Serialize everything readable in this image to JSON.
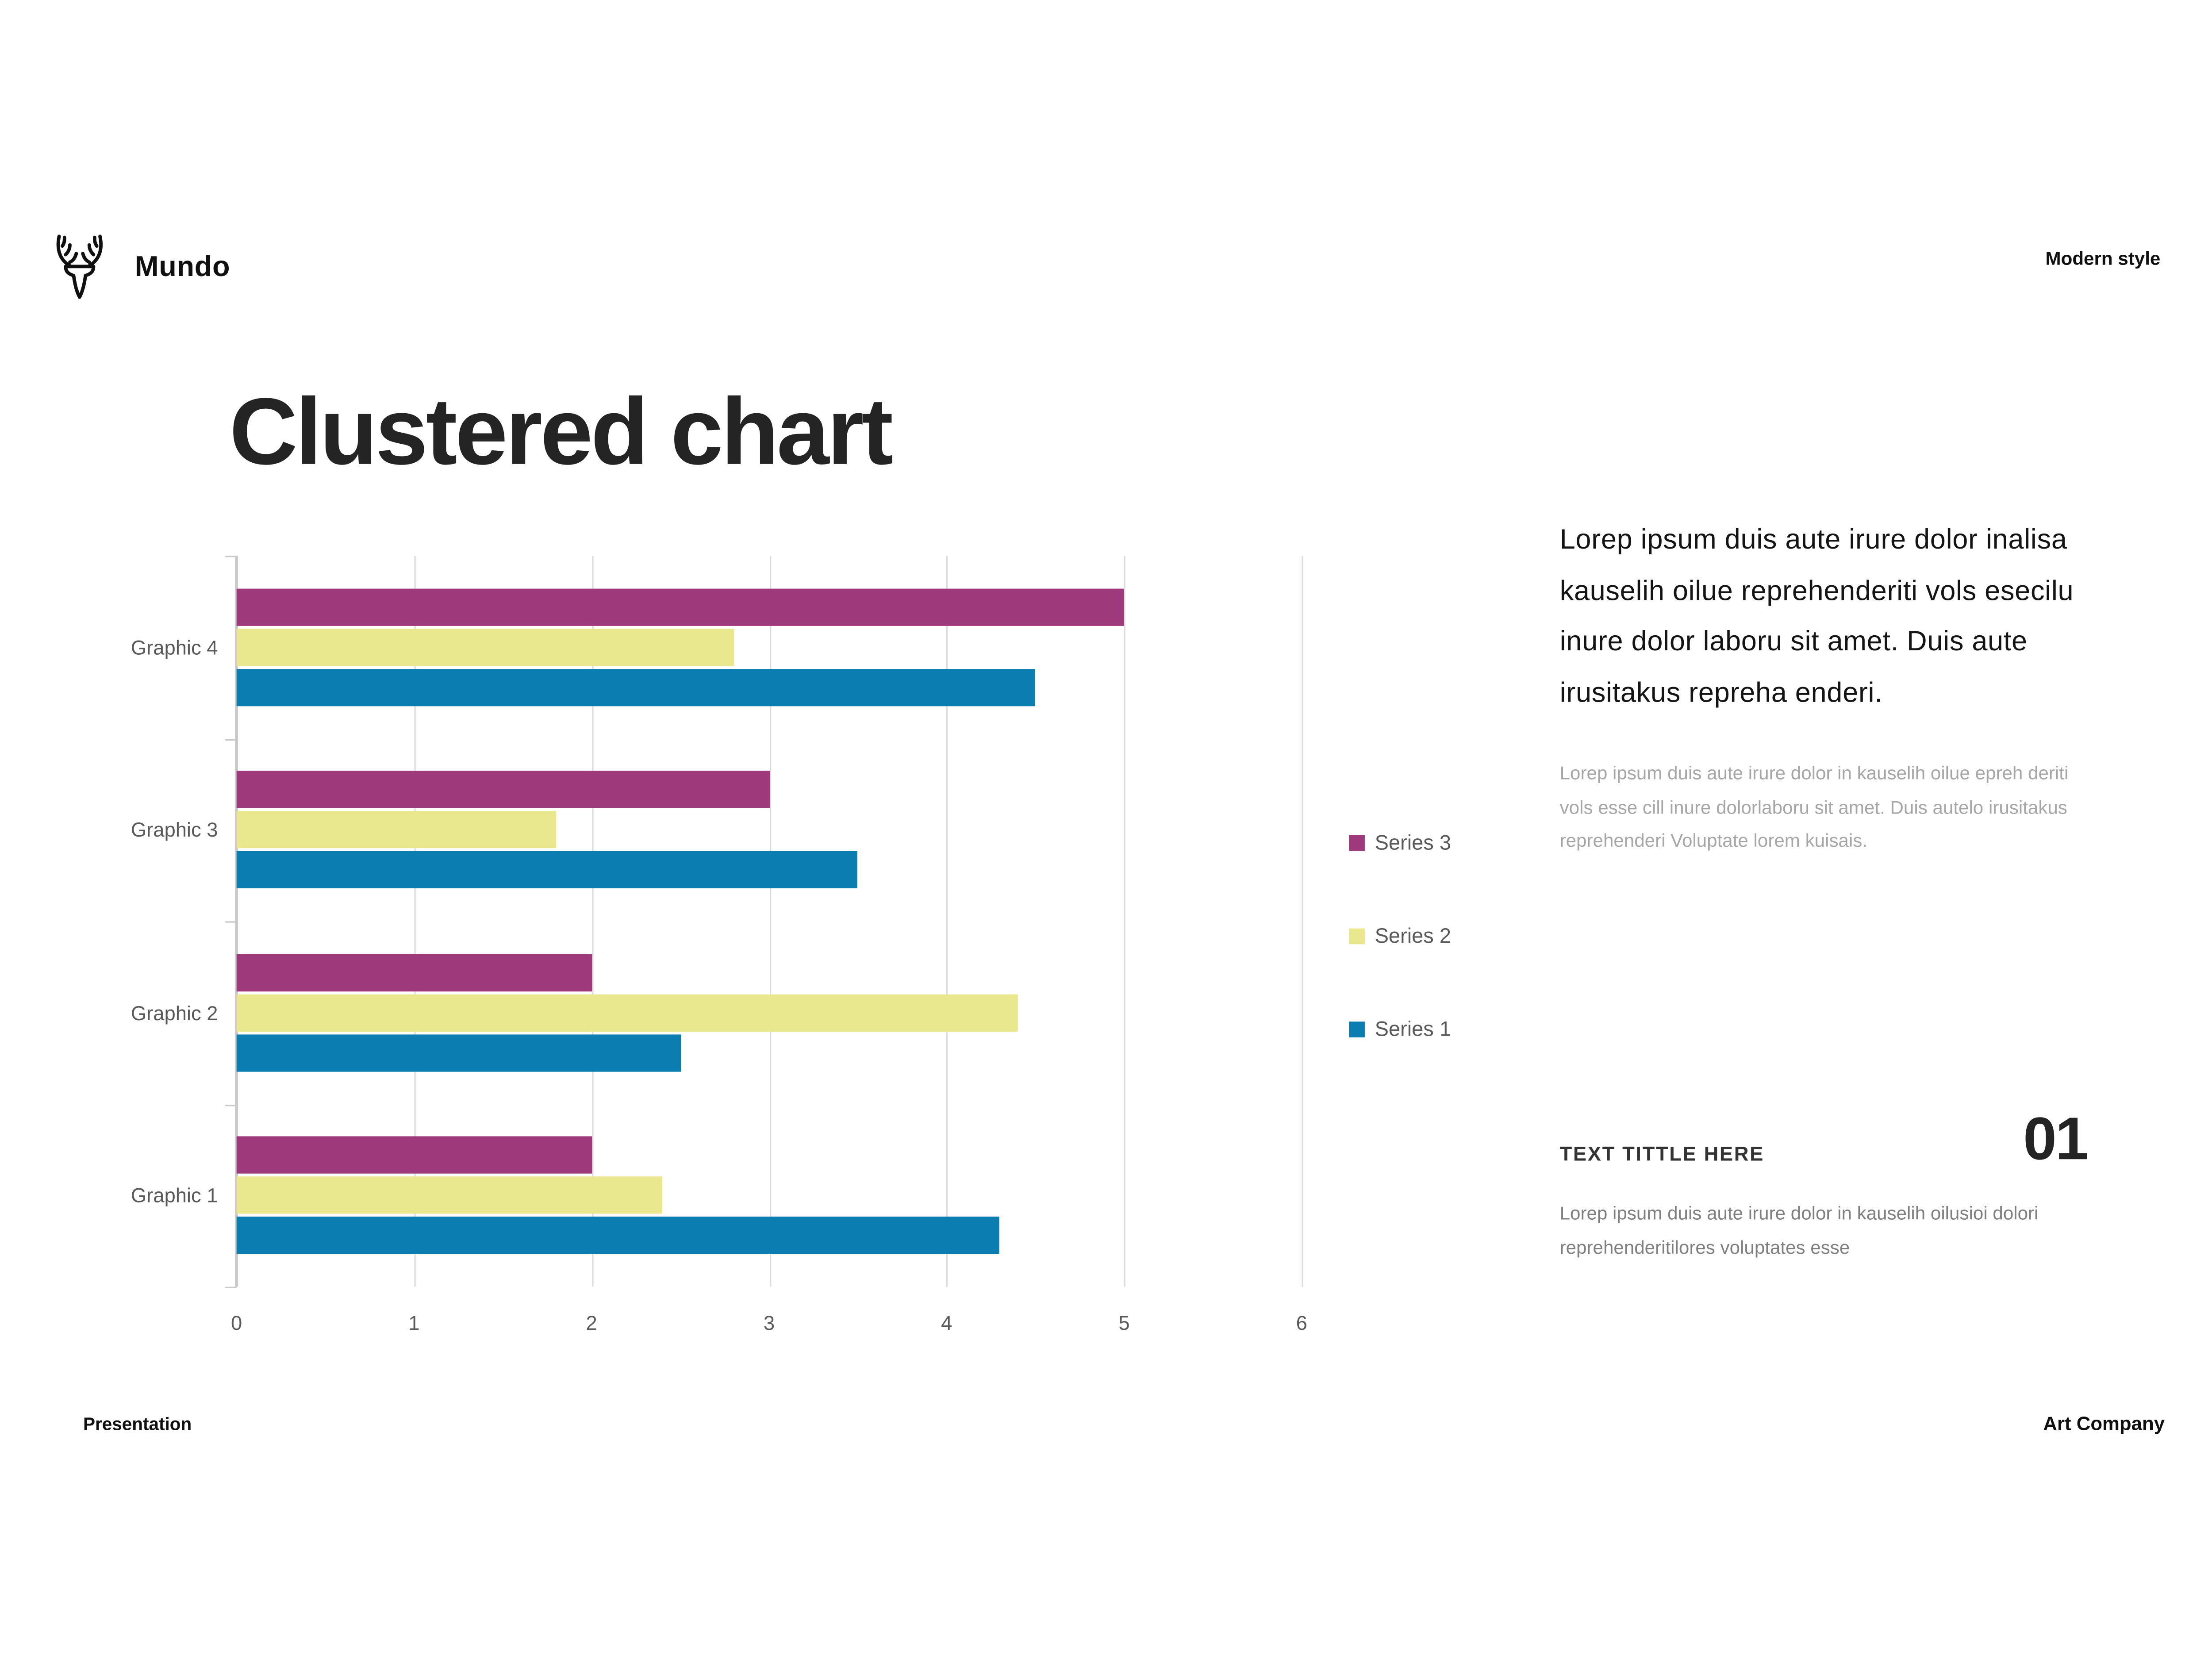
{
  "header": {
    "brand": "Mundo",
    "style_label": "Modern style"
  },
  "title": "Clustered chart",
  "chart_data": {
    "type": "bar",
    "orientation": "horizontal",
    "title": "Clustered chart",
    "categories": [
      "Graphic 4",
      "Graphic 3",
      "Graphic 2",
      "Graphic 1"
    ],
    "series": [
      {
        "name": "Series 3",
        "color": "#9e3a7c",
        "values": [
          5.0,
          3.0,
          2.0,
          2.0
        ]
      },
      {
        "name": "Series 2",
        "color": "#eae88f",
        "values": [
          2.8,
          1.8,
          4.4,
          2.4
        ]
      },
      {
        "name": "Series 1",
        "color": "#0b7db0",
        "values": [
          4.5,
          3.5,
          2.5,
          4.3
        ]
      }
    ],
    "x_ticks": [
      "0",
      "1",
      "2",
      "3",
      "4",
      "5",
      "6"
    ],
    "xlim": [
      0,
      6
    ],
    "grid": true,
    "grid_color": "#dcdcdc",
    "axis_color": "#c9c9c9",
    "legend_position": "right"
  },
  "right_panel": {
    "lead_paragraph": "Lorep  ipsum duis aute irure dolor inalisa kauselih oilue reprehenderiti vols esecilu inure dolor laboru sit amet. Duis aute irusitakus repreha enderi.",
    "secondary_paragraph": "Lorep  ipsum duis aute irure dolor in kauselih oilue epreh deriti vols esse cill inure dolorlaboru sit amet. Duis autelo irusitakus reprehenderi Voluptate lorem kuisais.",
    "section_title": "TEXT TITTLE HERE",
    "section_number": "01",
    "section_paragraph": "Lorep  ipsum duis aute irure dolor in kauselih oilusioi dolori reprehenderitilores voluptates esse"
  },
  "footer": {
    "left": "Presentation",
    "right": "Art Company"
  }
}
